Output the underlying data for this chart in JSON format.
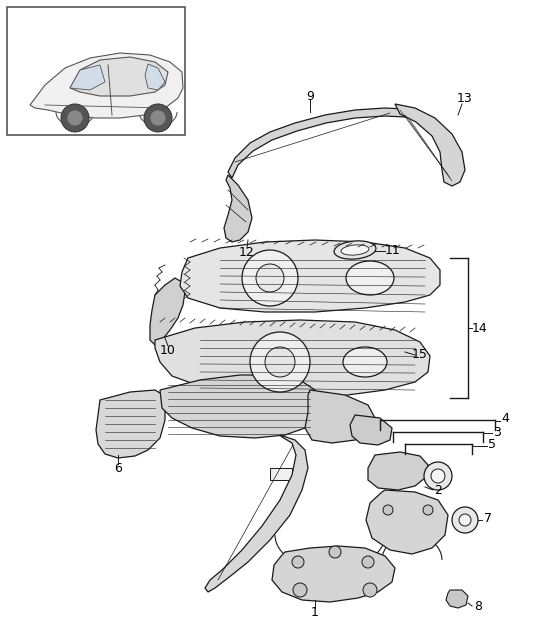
{
  "bg_color": "#ffffff",
  "line_color": "#1a1a1a",
  "label_color": "#000000",
  "figsize": [
    5.45,
    6.28
  ],
  "dpi": 100
}
